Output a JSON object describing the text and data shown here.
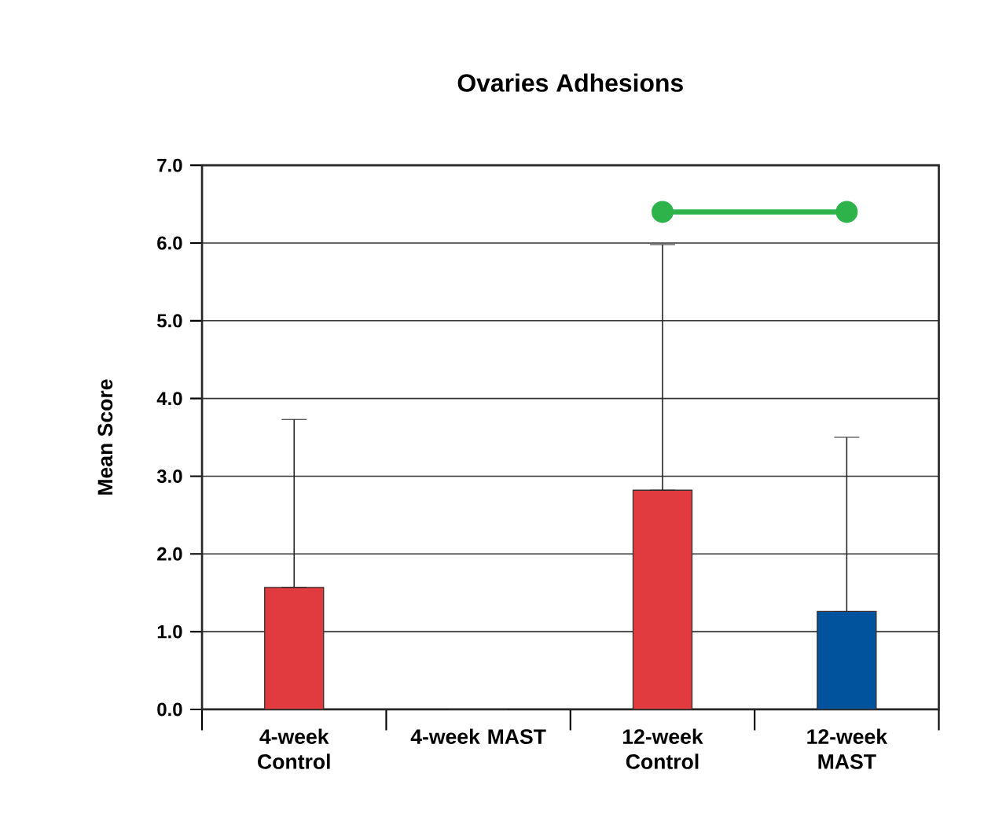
{
  "chart_data": {
    "type": "bar",
    "title": "Ovaries Adhesions",
    "ylabel": "Mean Score",
    "categories": [
      "4-week Control",
      "4-week MAST",
      "12-week Control",
      "12-week MAST"
    ],
    "series": [
      {
        "values": [
          1.57,
          0,
          2.82,
          1.26
        ],
        "colors": [
          "#e23b3f",
          "#e23b3f",
          "#e23b3f",
          "#02539d"
        ],
        "errors": [
          [
            1.57,
            3.73
          ],
          null,
          [
            2.82,
            5.98
          ],
          [
            1.26,
            3.5
          ]
        ]
      },
      {
        "type": "line",
        "color": "#2db34a",
        "x": [
          "12-week Control",
          "12-week MAST"
        ],
        "values": [
          6.4,
          6.4
        ],
        "marker": "circle"
      }
    ],
    "ylim": [
      0,
      7
    ],
    "yticks": [
      {
        "value": 0,
        "label": "0.0"
      },
      {
        "value": 1,
        "label": "1.0"
      },
      {
        "value": 2,
        "label": "2.0"
      },
      {
        "value": 3,
        "label": "3.0"
      },
      {
        "value": 4,
        "label": "4.0"
      },
      {
        "value": 5,
        "label": "5.0"
      },
      {
        "value": 6,
        "label": "6.0"
      },
      {
        "value": 7,
        "label": "7.0"
      }
    ],
    "grid": "y"
  }
}
